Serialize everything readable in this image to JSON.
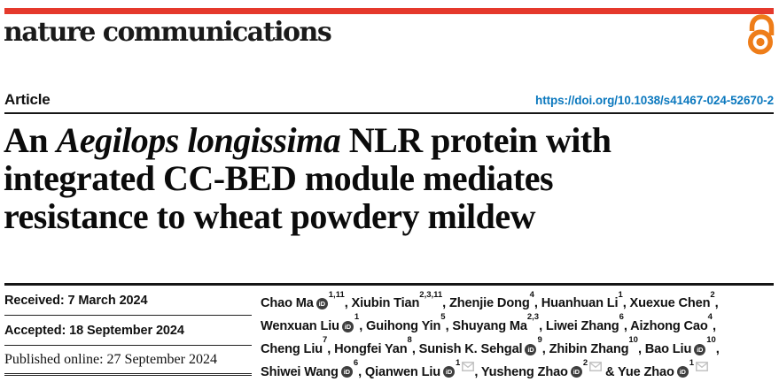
{
  "brand": {
    "journal_name": "nature communications",
    "bar_color": "#e5392c",
    "open_access_color": "#ee7d19"
  },
  "article_bar": {
    "article_type": "Article",
    "doi_url": "https://doi.org/10.1038/s41467-024-52670-2",
    "doi_color": "#0b78be"
  },
  "title": {
    "lines": [
      [
        {
          "text": "An ",
          "italic": false
        },
        {
          "text": "Aegilops longissima",
          "italic": true
        },
        {
          "text": " NLR protein with",
          "italic": false
        }
      ],
      [
        {
          "text": "integrated CC-BED module mediates",
          "italic": false
        }
      ],
      [
        {
          "text": "resistance to wheat powdery mildew",
          "italic": false
        }
      ]
    ]
  },
  "history": {
    "rows": [
      {
        "label": "Received:",
        "value": "7 March 2024",
        "style": "sans-bold"
      },
      {
        "label": "Accepted:",
        "value": "18 September 2024",
        "style": "sans-bold"
      },
      {
        "label": "Published online:",
        "value": "27 September 2024",
        "style": "serif"
      }
    ]
  },
  "authors": {
    "orcid_badge_text": "iD",
    "lines": [
      [
        {
          "name": "Chao Ma",
          "orcid": true,
          "sup": "1,11",
          "envelope": false,
          "sep": ", "
        },
        {
          "name": "Xiubin Tian",
          "orcid": false,
          "sup": "2,3,11",
          "envelope": false,
          "sep": ", "
        },
        {
          "name": "Zhenjie Dong",
          "orcid": false,
          "sup": "4",
          "envelope": false,
          "sep": ", "
        },
        {
          "name": "Huanhuan Li",
          "orcid": false,
          "sup": "1",
          "envelope": false,
          "sep": ", "
        },
        {
          "name": "Xuexue Chen",
          "orcid": false,
          "sup": "2",
          "envelope": false,
          "sep": ","
        }
      ],
      [
        {
          "name": "Wenxuan Liu",
          "orcid": true,
          "sup": "1",
          "envelope": false,
          "sep": ", "
        },
        {
          "name": "Guihong Yin",
          "orcid": false,
          "sup": "5",
          "envelope": false,
          "sep": ", "
        },
        {
          "name": "Shuyang Ma",
          "orcid": false,
          "sup": "2,3",
          "envelope": false,
          "sep": ", "
        },
        {
          "name": "Liwei Zhang",
          "orcid": false,
          "sup": "6",
          "envelope": false,
          "sep": ", "
        },
        {
          "name": "Aizhong Cao",
          "orcid": false,
          "sup": "4",
          "envelope": false,
          "sep": ","
        }
      ],
      [
        {
          "name": "Cheng Liu",
          "orcid": false,
          "sup": "7",
          "envelope": false,
          "sep": ", "
        },
        {
          "name": "Hongfei Yan",
          "orcid": false,
          "sup": "8",
          "envelope": false,
          "sep": ", "
        },
        {
          "name": "Sunish K. Sehgal",
          "orcid": true,
          "sup": "9",
          "envelope": false,
          "sep": ", "
        },
        {
          "name": "Zhibin Zhang",
          "orcid": false,
          "sup": "10",
          "envelope": false,
          "sep": ", "
        },
        {
          "name": "Bao Liu",
          "orcid": true,
          "sup": "10",
          "envelope": false,
          "sep": ","
        }
      ],
      [
        {
          "name": "Shiwei Wang",
          "orcid": true,
          "sup": "6",
          "envelope": false,
          "sep": ", "
        },
        {
          "name": "Qianwen Liu",
          "orcid": true,
          "sup": "1",
          "envelope": true,
          "sep": ", "
        },
        {
          "name": "Yusheng Zhao",
          "orcid": true,
          "sup": "2",
          "envelope": true,
          "sep": " & "
        },
        {
          "name": "Yue Zhao",
          "orcid": true,
          "sup": "1",
          "envelope": true,
          "sep": ""
        }
      ]
    ]
  }
}
